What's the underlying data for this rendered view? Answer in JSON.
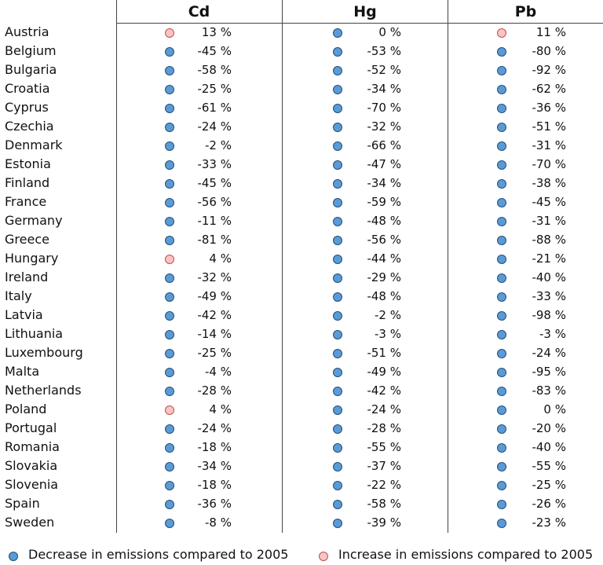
{
  "colors": {
    "decrease": "#5b9bd5",
    "decrease_border": "#1f4f7a",
    "increase": "#f9c4c4",
    "increase_border": "#c0504d"
  },
  "legend": {
    "decrease_label": "Decrease in emissions compared to 2005",
    "increase_label": "Increase in emissions compared to 2005"
  },
  "chart_data": {
    "type": "table",
    "columns": [
      "Cd",
      "Hg",
      "Pb"
    ],
    "unit": "%",
    "rows": [
      {
        "country": "Austria",
        "values": [
          13,
          0,
          11
        ]
      },
      {
        "country": "Belgium",
        "values": [
          -45,
          -53,
          -80
        ]
      },
      {
        "country": "Bulgaria",
        "values": [
          -58,
          -52,
          -92
        ]
      },
      {
        "country": "Croatia",
        "values": [
          -25,
          -34,
          -62
        ]
      },
      {
        "country": "Cyprus",
        "values": [
          -61,
          -70,
          -36
        ]
      },
      {
        "country": "Czechia",
        "values": [
          -24,
          -32,
          -51
        ]
      },
      {
        "country": "Denmark",
        "values": [
          -2,
          -66,
          -31
        ]
      },
      {
        "country": "Estonia",
        "values": [
          -33,
          -47,
          -70
        ]
      },
      {
        "country": "Finland",
        "values": [
          -45,
          -34,
          -38
        ]
      },
      {
        "country": "France",
        "values": [
          -56,
          -59,
          -45
        ]
      },
      {
        "country": "Germany",
        "values": [
          -11,
          -48,
          -31
        ]
      },
      {
        "country": "Greece",
        "values": [
          -81,
          -56,
          -88
        ]
      },
      {
        "country": "Hungary",
        "values": [
          4,
          -44,
          -21
        ]
      },
      {
        "country": "Ireland",
        "values": [
          -32,
          -29,
          -40
        ]
      },
      {
        "country": "Italy",
        "values": [
          -49,
          -48,
          -33
        ]
      },
      {
        "country": "Latvia",
        "values": [
          -42,
          -2,
          -98
        ]
      },
      {
        "country": "Lithuania",
        "values": [
          -14,
          -3,
          -3
        ]
      },
      {
        "country": "Luxembourg",
        "values": [
          -25,
          -51,
          -24
        ]
      },
      {
        "country": "Malta",
        "values": [
          -4,
          -49,
          -95
        ]
      },
      {
        "country": "Netherlands",
        "values": [
          -28,
          -42,
          -83
        ]
      },
      {
        "country": "Poland",
        "values": [
          4,
          -24,
          0
        ]
      },
      {
        "country": "Portugal",
        "values": [
          -24,
          -28,
          -20
        ]
      },
      {
        "country": "Romania",
        "values": [
          -18,
          -55,
          -40
        ]
      },
      {
        "country": "Slovakia",
        "values": [
          -34,
          -37,
          -55
        ]
      },
      {
        "country": "Slovenia",
        "values": [
          -18,
          -22,
          -25
        ]
      },
      {
        "country": "Spain",
        "values": [
          -36,
          -58,
          -26
        ]
      },
      {
        "country": "Sweden",
        "values": [
          -8,
          -39,
          -23
        ]
      }
    ]
  }
}
